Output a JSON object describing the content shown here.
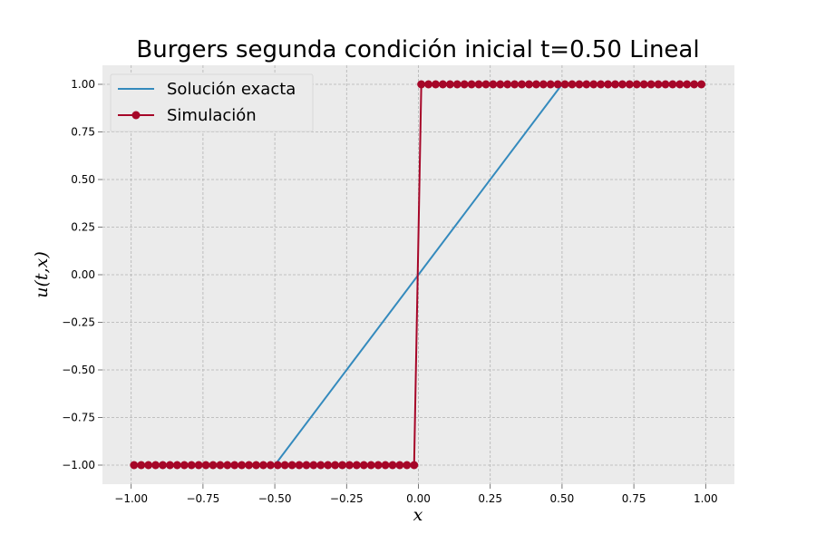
{
  "chart_data": {
    "type": "line",
    "title": "Burgers segunda condición inicial t=0.50 Lineal",
    "xlabel": "x",
    "ylabel": "u(t,x)",
    "xlim": [
      -1.1,
      1.1
    ],
    "ylim": [
      -1.1,
      1.1
    ],
    "xticks": [
      -1.0,
      -0.75,
      -0.5,
      -0.25,
      0.0,
      0.25,
      0.5,
      0.75,
      1.0
    ],
    "xtick_labels": [
      "−1.00",
      "−0.75",
      "−0.50",
      "−0.25",
      "0.00",
      "0.25",
      "0.50",
      "0.75",
      "1.00"
    ],
    "yticks": [
      -1.0,
      -0.75,
      -0.5,
      -0.25,
      0.0,
      0.25,
      0.5,
      0.75,
      1.0
    ],
    "ytick_labels": [
      "−1.00",
      "−0.75",
      "−0.50",
      "−0.25",
      "0.00",
      "0.25",
      "0.50",
      "0.75",
      "1.00"
    ],
    "grid": true,
    "legend_position": "top-left",
    "series": [
      {
        "name": "Solución exacta",
        "color": "#348abd",
        "marker": "none",
        "x": [
          -0.5,
          0.5
        ],
        "y": [
          -1.0,
          1.0
        ]
      },
      {
        "name": "Simulación",
        "color": "#a60628",
        "marker": "circle",
        "x_start": -0.99,
        "x_step": 0.025,
        "count": 80,
        "jump_after": 0.0,
        "y_before": -1.0,
        "y_after": 1.0
      }
    ]
  }
}
